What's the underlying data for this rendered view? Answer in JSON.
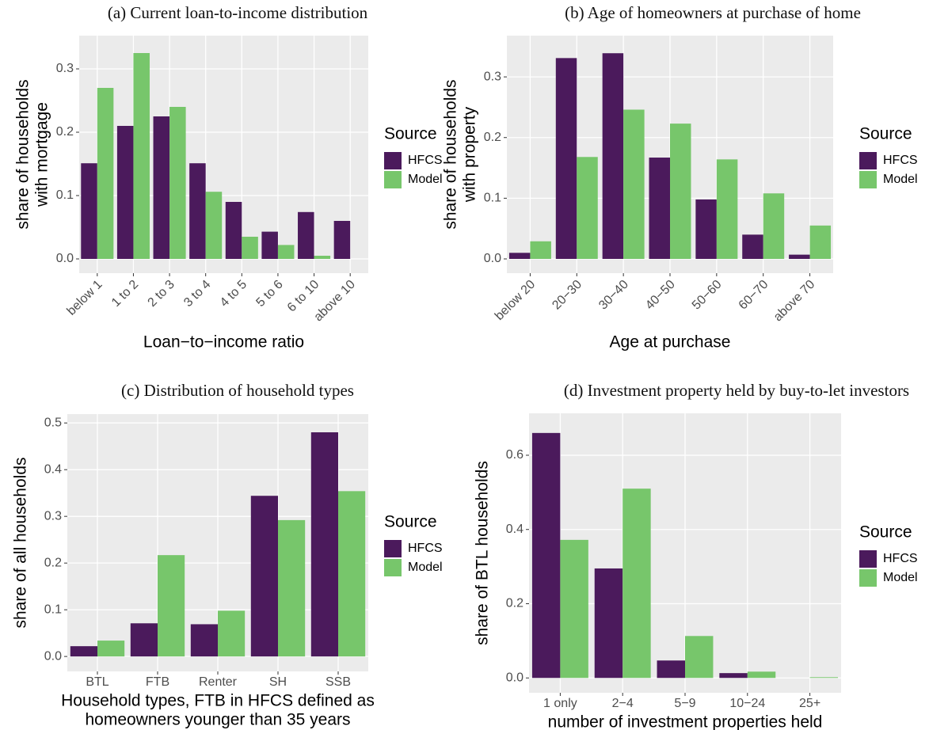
{
  "chart_data": [
    {
      "type": "bar",
      "title": "(a) Current loan-to-income distribution",
      "ylabel": [
        "share of households",
        "with mortgage"
      ],
      "xlabel": [
        "Loan−to−income ratio"
      ],
      "categories": [
        "below 1",
        "1 to 2",
        "2 to 3",
        "3 to 4",
        "4 to 5",
        "5 to 6",
        "6 to 10",
        "above 10"
      ],
      "series": [
        {
          "name": "HFCS",
          "color": "#4b1a5c",
          "values": [
            0.151,
            0.21,
            0.225,
            0.151,
            0.09,
            0.043,
            0.074,
            0.06
          ]
        },
        {
          "name": "Model",
          "color": "#77c66b",
          "values": [
            0.27,
            0.325,
            0.24,
            0.106,
            0.035,
            0.022,
            0.005,
            0
          ]
        }
      ],
      "ylim": [
        -0.0225,
        0.3525
      ],
      "yticks": [
        {
          "value": 0,
          "label": "0.0"
        },
        0.1,
        0.2,
        0.3
      ],
      "legend_title": "Source",
      "grid": true
    },
    {
      "type": "bar",
      "title": "(b) Age of homeowners at purchase of home",
      "ylabel": [
        "share of households",
        "with property"
      ],
      "xlabel": [
        "Age at purchase"
      ],
      "categories": [
        "below 20",
        "20−30",
        "30−40",
        "40−50",
        "50−60",
        "60−70",
        "above 70"
      ],
      "series": [
        {
          "name": "HFCS",
          "color": "#4b1a5c",
          "values": [
            0.01,
            0.331,
            0.339,
            0.167,
            0.098,
            0.04,
            0.007
          ]
        },
        {
          "name": "Model",
          "color": "#77c66b",
          "values": [
            0.029,
            0.168,
            0.246,
            0.223,
            0.164,
            0.108,
            0.055
          ]
        }
      ],
      "ylim": [
        -0.0235,
        0.368
      ],
      "yticks": [
        {
          "value": 0,
          "label": "0.0"
        },
        0.1,
        0.2,
        0.3
      ],
      "legend_title": "Source",
      "grid": true
    },
    {
      "type": "bar",
      "title": "(c) Distribution of household types",
      "ylabel": [
        "share of all households"
      ],
      "xlabel": [
        "Household types, FTB in HFCS defined as",
        "homeowners younger than 35 years"
      ],
      "categories": [
        "BTL",
        "FTB",
        "Renter",
        "SH",
        "SSB"
      ],
      "series": [
        {
          "name": "HFCS",
          "color": "#4b1a5c",
          "values": [
            0.022,
            0.071,
            0.069,
            0.344,
            0.48
          ]
        },
        {
          "name": "Model",
          "color": "#77c66b",
          "values": [
            0.034,
            0.217,
            0.098,
            0.292,
            0.354
          ]
        }
      ],
      "ylim": [
        -0.032,
        0.519
      ],
      "yticks": [
        {
          "value": 0,
          "label": "0.0"
        },
        0.1,
        0.2,
        0.3,
        0.4,
        0.5
      ],
      "legend_title": "Source",
      "grid": true
    },
    {
      "type": "bar",
      "title": "(d) Investment property held by buy-to-let investors",
      "ylabel": [
        "share of BTL households"
      ],
      "xlabel": [
        "number of investment properties held"
      ],
      "categories": [
        "1 only",
        "2−4",
        "5−9",
        "10−24",
        "25+"
      ],
      "series": [
        {
          "name": "HFCS",
          "color": "#4b1a5c",
          "values": [
            0.66,
            0.295,
            0.047,
            0.013,
            0
          ]
        },
        {
          "name": "Model",
          "color": "#77c66b",
          "values": [
            0.372,
            0.51,
            0.113,
            0.017,
            0.002
          ]
        }
      ],
      "ylim": [
        -0.04,
        0.713
      ],
      "yticks": [
        {
          "value": 0,
          "label": "0.0"
        },
        0.2,
        0.4,
        0.6
      ],
      "legend_title": "Source",
      "grid": true
    }
  ]
}
